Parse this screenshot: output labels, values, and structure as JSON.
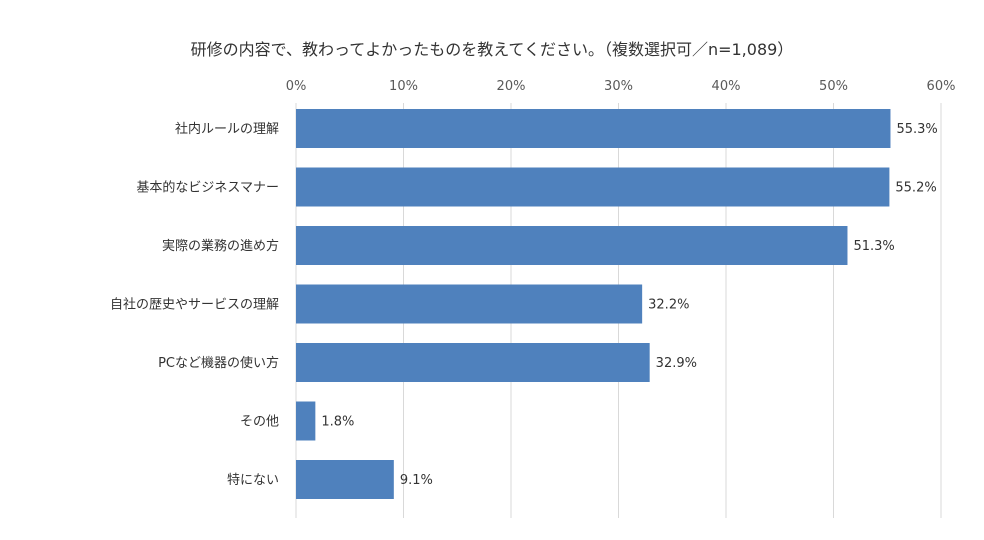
{
  "chart_data": {
    "type": "bar",
    "orientation": "horizontal",
    "title": "研修の内容で、教わってよかったものを教えてください。（複数選択可／n=1,089）",
    "categories": [
      "社内ルールの理解",
      "基本的なビジネスマナー",
      "実際の業務の進め方",
      "自社の歴史やサービスの理解",
      "PCなど機器の使い方",
      "その他",
      "特にない"
    ],
    "values": [
      55.3,
      55.2,
      51.3,
      32.2,
      32.9,
      1.8,
      9.1
    ],
    "data_labels": [
      "55.3%",
      "55.2%",
      "51.3%",
      "32.2%",
      "32.9%",
      "1.8%",
      "9.1%"
    ],
    "xlim": [
      0,
      60
    ],
    "x_ticks": [
      0,
      10,
      20,
      30,
      40,
      50,
      60
    ],
    "x_tick_labels": [
      "0%",
      "10%",
      "20%",
      "30%",
      "40%",
      "50%",
      "60%"
    ],
    "xlabel": "",
    "ylabel": "",
    "grid": true,
    "axis_position": "top",
    "bar_color": "#4f81bd",
    "grid_color": "#d9d9d9"
  }
}
